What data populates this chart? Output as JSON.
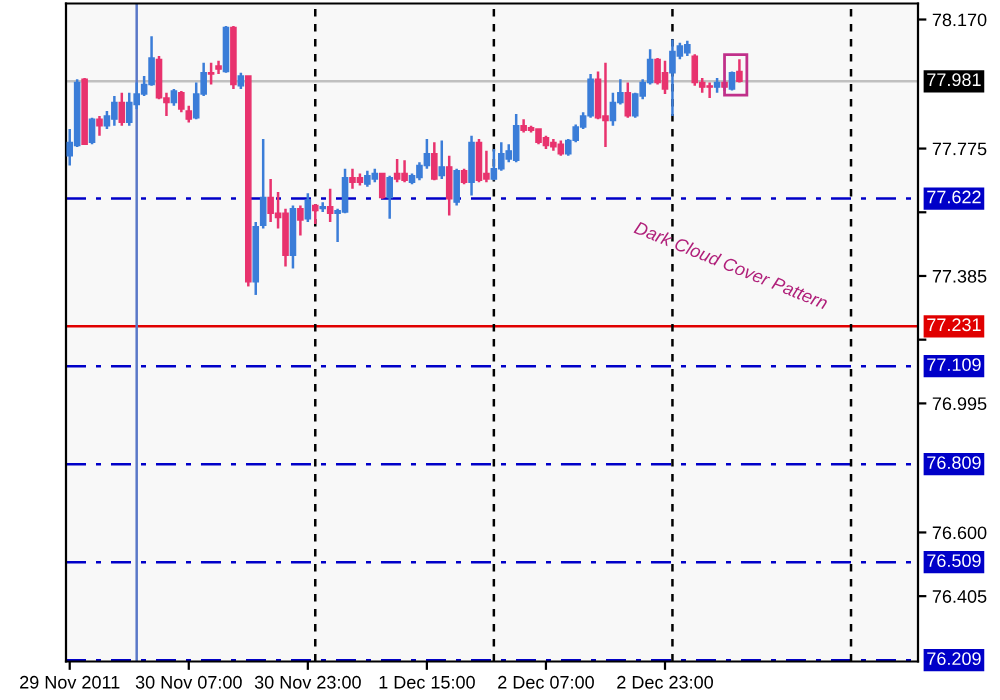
{
  "chart_data": {
    "type": "candlestick",
    "annotations": [
      "Dark Cloud Cover Pattern"
    ],
    "x": [
      "2011-11-29T15:00",
      "2011-11-29T16:00",
      "2011-11-29T17:00",
      "2011-11-29T18:00",
      "2011-11-29T19:00",
      "2011-11-29T20:00",
      "2011-11-29T21:00",
      "2011-11-29T22:00",
      "2011-11-29T23:00",
      "2011-11-30T00:00",
      "2011-11-30T01:00",
      "2011-11-30T02:00",
      "2011-11-30T03:00",
      "2011-11-30T04:00",
      "2011-11-30T05:00",
      "2011-11-30T06:00",
      "2011-11-30T07:00",
      "2011-11-30T08:00",
      "2011-11-30T09:00",
      "2011-11-30T10:00",
      "2011-11-30T11:00",
      "2011-11-30T12:00",
      "2011-11-30T13:00",
      "2011-11-30T14:00",
      "2011-11-30T15:00",
      "2011-11-30T16:00",
      "2011-11-30T17:00",
      "2011-11-30T18:00",
      "2011-11-30T19:00",
      "2011-11-30T20:00",
      "2011-11-30T21:00",
      "2011-11-30T22:00",
      "2011-11-30T23:00",
      "2011-12-01T00:00",
      "2011-12-01T01:00",
      "2011-12-01T02:00",
      "2011-12-01T03:00",
      "2011-12-01T04:00",
      "2011-12-01T05:00",
      "2011-12-01T06:00",
      "2011-12-01T07:00",
      "2011-12-01T08:00",
      "2011-12-01T09:00",
      "2011-12-01T10:00",
      "2011-12-01T11:00",
      "2011-12-01T12:00",
      "2011-12-01T13:00",
      "2011-12-01T14:00",
      "2011-12-01T15:00",
      "2011-12-01T16:00",
      "2011-12-01T17:00",
      "2011-12-01T18:00",
      "2011-12-01T19:00",
      "2011-12-01T20:00",
      "2011-12-01T21:00",
      "2011-12-01T22:00",
      "2011-12-01T23:00",
      "2011-12-02T00:00",
      "2011-12-02T01:00",
      "2011-12-02T02:00",
      "2011-12-02T03:00",
      "2011-12-02T04:00",
      "2011-12-02T05:00",
      "2011-12-02T06:00",
      "2011-12-02T07:00",
      "2011-12-02T08:00",
      "2011-12-02T09:00",
      "2011-12-02T10:00",
      "2011-12-02T11:00",
      "2011-12-02T12:00",
      "2011-12-02T13:00",
      "2011-12-02T14:00",
      "2011-12-02T15:00",
      "2011-12-02T16:00",
      "2011-12-02T17:00",
      "2011-12-02T18:00",
      "2011-12-02T19:00",
      "2011-12-02T20:00",
      "2011-12-02T21:00",
      "2011-12-02T22:00",
      "2011-12-02T23:00",
      "2011-12-03T00:00",
      "2011-12-03T01:00",
      "2011-12-03T02:00",
      "2011-12-03T03:00",
      "2011-12-03T04:00",
      "2011-12-03T05:00",
      "2011-12-03T06:00",
      "2011-12-03T07:00",
      "2011-12-03T08:00",
      "2011-12-03T09:00"
    ],
    "ohlc": [
      [
        77.753,
        77.835,
        77.723,
        77.794
      ],
      [
        77.784,
        77.987,
        77.78,
        77.977
      ],
      [
        77.987,
        77.991,
        77.788,
        77.788
      ],
      [
        77.794,
        77.869,
        77.788,
        77.865
      ],
      [
        77.865,
        77.875,
        77.814,
        77.845
      ],
      [
        77.845,
        77.89,
        77.835,
        77.875
      ],
      [
        77.865,
        77.936,
        77.845,
        77.916
      ],
      [
        77.916,
        77.946,
        77.845,
        77.855
      ],
      [
        77.855,
        77.946,
        77.845,
        77.916
      ],
      [
        77.91,
        77.977,
        77.896,
        77.942
      ],
      [
        77.942,
        77.997,
        77.936,
        77.971
      ],
      [
        77.971,
        78.119,
        77.967,
        78.052
      ],
      [
        78.048,
        78.058,
        77.926,
        77.93
      ],
      [
        77.93,
        77.946,
        77.875,
        77.916
      ],
      [
        77.916,
        77.957,
        77.906,
        77.951
      ],
      [
        77.946,
        77.951,
        77.886,
        77.896
      ],
      [
        77.89,
        77.906,
        77.855,
        77.865
      ],
      [
        77.869,
        77.977,
        77.865,
        77.942
      ],
      [
        77.942,
        78.038,
        77.936,
        78.007
      ],
      [
        78.007,
        78.038,
        77.971,
        78.003
      ],
      [
        78.028,
        78.044,
        78.003,
        78.018
      ],
      [
        78.011,
        78.15,
        78.007,
        78.146
      ],
      [
        78.146,
        78.15,
        77.957,
        77.971
      ],
      [
        77.967,
        78.007,
        77.957,
        77.997
      ],
      [
        77.997,
        77.997,
        77.353,
        77.367
      ],
      [
        77.367,
        77.55,
        77.327,
        77.536
      ],
      [
        77.54,
        77.804,
        77.53,
        77.625
      ],
      [
        77.625,
        77.682,
        77.55,
        77.577
      ],
      [
        77.577,
        77.642,
        77.53,
        77.564
      ],
      [
        77.577,
        77.591,
        77.414,
        77.448
      ],
      [
        77.448,
        77.601,
        77.408,
        77.591
      ],
      [
        77.591,
        77.601,
        77.509,
        77.556
      ],
      [
        77.56,
        77.638,
        77.55,
        77.617
      ],
      [
        77.601,
        77.605,
        77.544,
        77.585
      ],
      [
        77.591,
        77.611,
        77.581,
        77.597
      ],
      [
        77.597,
        77.652,
        77.55,
        77.577
      ],
      [
        77.577,
        77.591,
        77.489,
        77.585
      ],
      [
        77.581,
        77.713,
        77.577,
        77.686
      ],
      [
        77.686,
        77.713,
        77.652,
        77.672
      ],
      [
        77.686,
        77.699,
        77.662,
        77.672
      ],
      [
        77.666,
        77.707,
        77.658,
        77.692
      ],
      [
        77.682,
        77.713,
        77.672,
        77.699
      ],
      [
        77.699,
        77.699,
        77.621,
        77.625
      ],
      [
        77.625,
        77.692,
        77.56,
        77.686
      ],
      [
        77.699,
        77.743,
        77.672,
        77.682
      ],
      [
        77.699,
        77.739,
        77.672,
        77.678
      ],
      [
        77.672,
        77.699,
        77.666,
        77.692
      ],
      [
        77.686,
        77.733,
        77.678,
        77.723
      ],
      [
        77.723,
        77.804,
        77.713,
        77.759
      ],
      [
        77.759,
        77.794,
        77.678,
        77.682
      ],
      [
        77.692,
        77.8,
        77.682,
        77.719
      ],
      [
        77.719,
        77.753,
        77.57,
        77.621
      ],
      [
        77.611,
        77.713,
        77.601,
        77.707
      ],
      [
        77.707,
        77.713,
        77.666,
        77.672
      ],
      [
        77.672,
        77.814,
        77.631,
        77.794
      ],
      [
        77.794,
        77.804,
        77.672,
        77.678
      ],
      [
        77.699,
        77.768,
        77.672,
        77.682
      ],
      [
        77.682,
        77.774,
        77.678,
        77.713
      ],
      [
        77.713,
        77.794,
        77.707,
        77.759
      ],
      [
        77.743,
        77.788,
        77.733,
        77.768
      ],
      [
        77.739,
        77.881,
        77.733,
        77.845
      ],
      [
        77.845,
        77.865,
        77.824,
        77.831
      ],
      [
        77.839,
        77.845,
        77.824,
        77.831
      ],
      [
        77.835,
        77.835,
        77.788,
        77.794
      ],
      [
        77.808,
        77.814,
        77.774,
        77.784
      ],
      [
        77.794,
        77.804,
        77.768,
        77.78
      ],
      [
        77.788,
        77.8,
        77.753,
        77.759
      ],
      [
        77.759,
        77.804,
        77.753,
        77.8
      ],
      [
        77.8,
        77.849,
        77.794,
        77.841
      ],
      [
        77.841,
        77.886,
        77.835,
        77.875
      ],
      [
        77.875,
        78.003,
        77.869,
        77.987
      ],
      [
        77.987,
        78.011,
        77.865,
        77.869
      ],
      [
        77.875,
        78.038,
        77.78,
        77.861
      ],
      [
        77.861,
        77.946,
        77.845,
        77.916
      ],
      [
        77.916,
        77.987,
        77.91,
        77.946
      ],
      [
        77.946,
        77.977,
        77.869,
        77.875
      ],
      [
        77.875,
        77.946,
        77.869,
        77.942
      ],
      [
        77.936,
        77.987,
        77.926,
        77.977
      ],
      [
        77.977,
        78.079,
        77.971,
        78.048
      ],
      [
        78.048,
        78.052,
        77.971,
        77.977
      ],
      [
        78.007,
        78.044,
        77.942,
        77.957
      ],
      [
        78.007,
        78.109,
        77.875,
        78.072
      ],
      [
        78.058,
        78.099,
        78.048,
        78.089
      ],
      [
        78.068,
        78.105,
        78.058,
        78.093
      ],
      [
        78.058,
        78.064,
        77.967,
        77.977
      ],
      [
        77.977,
        77.991,
        77.946,
        77.963
      ],
      [
        77.967,
        77.977,
        77.93,
        77.963
      ],
      [
        77.963,
        77.991,
        77.946,
        77.977
      ],
      [
        77.977,
        77.977,
        77.951,
        77.963
      ],
      [
        77.957,
        78.011,
        77.953,
        78.007
      ],
      [
        78.011,
        78.048,
        77.977,
        77.981
      ]
    ],
    "colors": [
      "#3b7dd8",
      "#3b7dd8",
      "#e8336e",
      "#3b7dd8",
      "#e8336e",
      "#3b7dd8",
      "#3b7dd8",
      "#e8336e",
      "#3b7dd8",
      "#3b7dd8",
      "#3b7dd8",
      "#3b7dd8",
      "#e8336e",
      "#e8336e",
      "#3b7dd8",
      "#e8336e",
      "#e8336e",
      "#3b7dd8",
      "#3b7dd8",
      "#e8336e",
      "#e8336e",
      "#3b7dd8",
      "#e8336e",
      "#3b7dd8",
      "#e8336e",
      "#3b7dd8",
      "#3b7dd8",
      "#e8336e",
      "#e8336e",
      "#e8336e",
      "#3b7dd8",
      "#e8336e",
      "#3b7dd8",
      "#e8336e",
      "#3b7dd8",
      "#e8336e",
      "#3b7dd8",
      "#3b7dd8",
      "#e8336e",
      "#e8336e",
      "#3b7dd8",
      "#3b7dd8",
      "#e8336e",
      "#3b7dd8",
      "#e8336e",
      "#e8336e",
      "#3b7dd8",
      "#3b7dd8",
      "#3b7dd8",
      "#e8336e",
      "#3b7dd8",
      "#e8336e",
      "#3b7dd8",
      "#e8336e",
      "#3b7dd8",
      "#e8336e",
      "#e8336e",
      "#3b7dd8",
      "#3b7dd8",
      "#3b7dd8",
      "#3b7dd8",
      "#e8336e",
      "#e8336e",
      "#e8336e",
      "#e8336e",
      "#e8336e",
      "#e8336e",
      "#3b7dd8",
      "#3b7dd8",
      "#3b7dd8",
      "#3b7dd8",
      "#e8336e",
      "#e8336e",
      "#3b7dd8",
      "#3b7dd8",
      "#e8336e",
      "#3b7dd8",
      "#3b7dd8",
      "#3b7dd8",
      "#e8336e",
      "#e8336e",
      "#3b7dd8",
      "#3b7dd8",
      "#3b7dd8",
      "#e8336e",
      "#e8336e",
      "#e8336e",
      "#3b7dd8",
      "#e8336e",
      "#3b7dd8",
      "#e8336e"
    ],
    "xlim": [
      "2011-11-29T14:30",
      "2011-12-04T09:00"
    ],
    "xticks": [
      {
        "value": "2011-11-29T15:00",
        "label": "29 Nov 2011"
      },
      {
        "value": "2011-11-30T07:00",
        "label": "30 Nov 07:00"
      },
      {
        "value": "2011-11-30T23:00",
        "label": "30 Nov 23:00"
      },
      {
        "value": "2011-12-01T15:00",
        "label": "1 Dec 15:00"
      },
      {
        "value": "2011-12-02T07:00",
        "label": "2 Dec 07:00"
      },
      {
        "value": "2011-12-02T23:00",
        "label": "2 Dec 23:00"
      }
    ],
    "ylim": [
      76.205,
      78.219
    ],
    "yticks": [
      {
        "value": 78.17,
        "label": "78.170"
      },
      {
        "value": 77.775,
        "label": "77.775"
      },
      {
        "value": 77.58,
        "label": null
      },
      {
        "value": 77.385,
        "label": "77.385"
      },
      {
        "value": 77.19,
        "label": null
      },
      {
        "value": 76.995,
        "label": "76.995"
      },
      {
        "value": 76.6,
        "label": "76.600"
      },
      {
        "value": 76.405,
        "label": "76.405"
      }
    ],
    "ref_lines": [
      {
        "axis": "y",
        "value": 77.981,
        "label": "77.981",
        "color": "#c0c0c0",
        "line_style": "solid"
      },
      {
        "axis": "y",
        "value": 77.622,
        "label": "77.622",
        "color": "#0000c8",
        "line_style": "dashdot"
      },
      {
        "axis": "y",
        "value": 77.231,
        "label": "77.231",
        "color": "#e00000",
        "line_style": "solid"
      },
      {
        "axis": "y",
        "value": 77.109,
        "label": "77.109",
        "color": "#0000c8",
        "line_style": "dashdot"
      },
      {
        "axis": "y",
        "value": 76.809,
        "label": "76.809",
        "color": "#0000c8",
        "line_style": "dashdot"
      },
      {
        "axis": "y",
        "value": 76.509,
        "label": "76.509",
        "color": "#0000c8",
        "line_style": "dashdot"
      },
      {
        "axis": "y",
        "value": 76.209,
        "label": "76.209",
        "color": "#0000c8",
        "line_style": "dashdot"
      },
      {
        "axis": "x",
        "value": "2011-11-30T00:00",
        "color": "#5a78c8",
        "line_style": "solid"
      },
      {
        "axis": "x",
        "value": "2011-12-01T00:00",
        "color": "#000000",
        "line_style": "dashed"
      },
      {
        "axis": "x",
        "value": "2011-12-02T00:00",
        "color": "#000000",
        "line_style": "dashed"
      },
      {
        "axis": "x",
        "value": "2011-12-03T00:00",
        "color": "#000000",
        "line_style": "dashed"
      },
      {
        "axis": "x",
        "value": "2011-12-04T00:00",
        "color": "#000000",
        "line_style": "dashed"
      }
    ]
  }
}
